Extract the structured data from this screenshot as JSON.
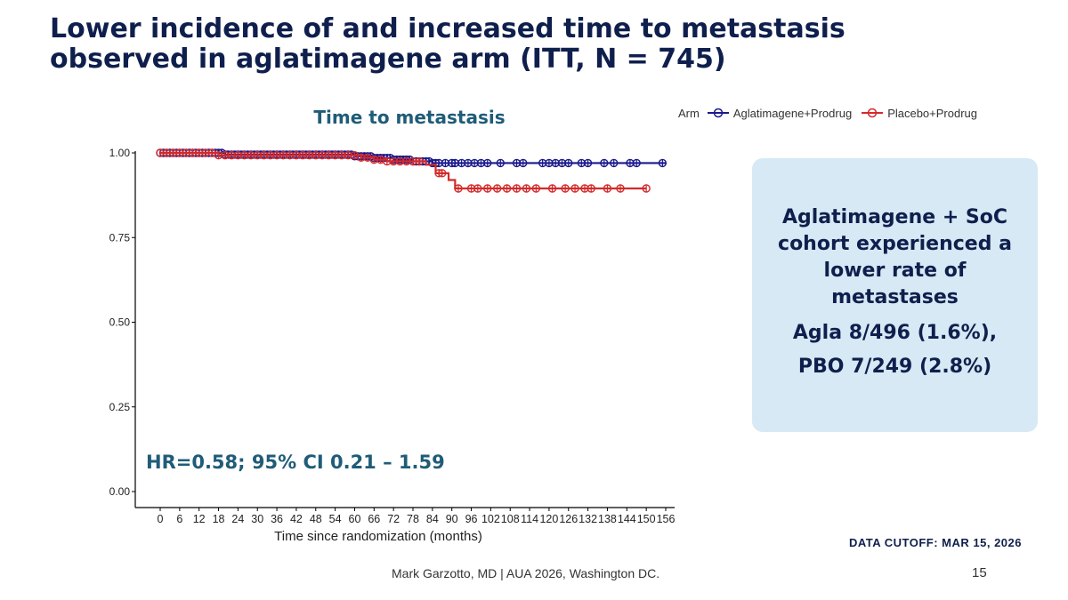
{
  "slide": {
    "title": "Lower incidence of and increased time to metastasis observed in aglatimagene arm (ITT, N = 745)",
    "hr_text": "HR=0.58; 95% CI 0.21 – 1.59",
    "callout": {
      "headline": "Aglatimagene + SoC cohort experienced a lower rate of metastases",
      "line1": "Agla 8/496 (1.6%),",
      "line2": "PBO 7/249 (2.8%)"
    },
    "data_cutoff": "DATA CUTOFF: MAR 15, 2026",
    "footer": "Mark Garzotto, MD |  AUA 2026, Washington DC.",
    "page_number": "15"
  },
  "colors": {
    "title": "#0f1f4d",
    "accent": "#1f5c78",
    "callout_bg": "#d6e9f4",
    "agla": "#1a1a8c",
    "placebo": "#d42a2a"
  },
  "chart_data": {
    "type": "line",
    "title": "Time to metastasis",
    "xlabel": "Time since randomization (months)",
    "ylabel": "",
    "xlim": [
      0,
      156
    ],
    "ylim": [
      0,
      1
    ],
    "x_ticks": [
      0,
      6,
      12,
      18,
      24,
      30,
      36,
      42,
      48,
      54,
      60,
      66,
      72,
      78,
      84,
      90,
      96,
      102,
      108,
      114,
      120,
      126,
      132,
      138,
      144,
      150,
      156
    ],
    "y_ticks": [
      "0.00",
      "0.25",
      "0.50",
      "0.75",
      "1.00"
    ],
    "grid": false,
    "legend": {
      "title": "Arm",
      "position": "top-right"
    },
    "series": [
      {
        "name": "Aglatimagene+Prodrug",
        "color": "#1a1a8c",
        "steps": [
          [
            0,
            1.0
          ],
          [
            20,
            0.995
          ],
          [
            60,
            0.99
          ],
          [
            66,
            0.985
          ],
          [
            72,
            0.98
          ],
          [
            78,
            0.975
          ],
          [
            84,
            0.97
          ],
          [
            156,
            0.97
          ]
        ],
        "censored": [
          0,
          1,
          2,
          3,
          4,
          5,
          6,
          7,
          8,
          9,
          10,
          11,
          12,
          13,
          14,
          15,
          16,
          17,
          18,
          19,
          20,
          21,
          22,
          23,
          24,
          25,
          26,
          27,
          28,
          29,
          30,
          31,
          32,
          33,
          34,
          35,
          36,
          37,
          38,
          39,
          40,
          41,
          42,
          43,
          44,
          45,
          46,
          47,
          48,
          49,
          50,
          51,
          52,
          53,
          54,
          55,
          56,
          57,
          58,
          59,
          60,
          61,
          62,
          63,
          64,
          65,
          66,
          67,
          68,
          69,
          70,
          71,
          72,
          73,
          74,
          75,
          76,
          77,
          78,
          79,
          80,
          81,
          82,
          83,
          84,
          85,
          86,
          88,
          90,
          91,
          93,
          95,
          97,
          99,
          101,
          105,
          110,
          112,
          118,
          120,
          122,
          124,
          126,
          130,
          132,
          137,
          140,
          145,
          147,
          155
        ]
      },
      {
        "name": "Placebo+Prodrug",
        "color": "#d42a2a",
        "steps": [
          [
            0,
            1.0
          ],
          [
            18,
            0.993
          ],
          [
            62,
            0.986
          ],
          [
            66,
            0.98
          ],
          [
            70,
            0.975
          ],
          [
            82,
            0.965
          ],
          [
            85,
            0.94
          ],
          [
            89,
            0.92
          ],
          [
            91,
            0.895
          ],
          [
            150,
            0.895
          ]
        ],
        "censored": [
          0,
          2,
          4,
          6,
          8,
          10,
          12,
          14,
          16,
          18,
          20,
          22,
          24,
          26,
          28,
          30,
          32,
          34,
          36,
          38,
          40,
          42,
          44,
          46,
          48,
          50,
          52,
          54,
          56,
          58,
          60,
          62,
          64,
          66,
          68,
          70,
          72,
          74,
          76,
          78,
          80,
          86,
          87,
          92,
          96,
          98,
          101,
          104,
          107,
          110,
          113,
          116,
          121,
          125,
          128,
          131,
          133,
          138,
          142,
          150
        ]
      }
    ]
  }
}
